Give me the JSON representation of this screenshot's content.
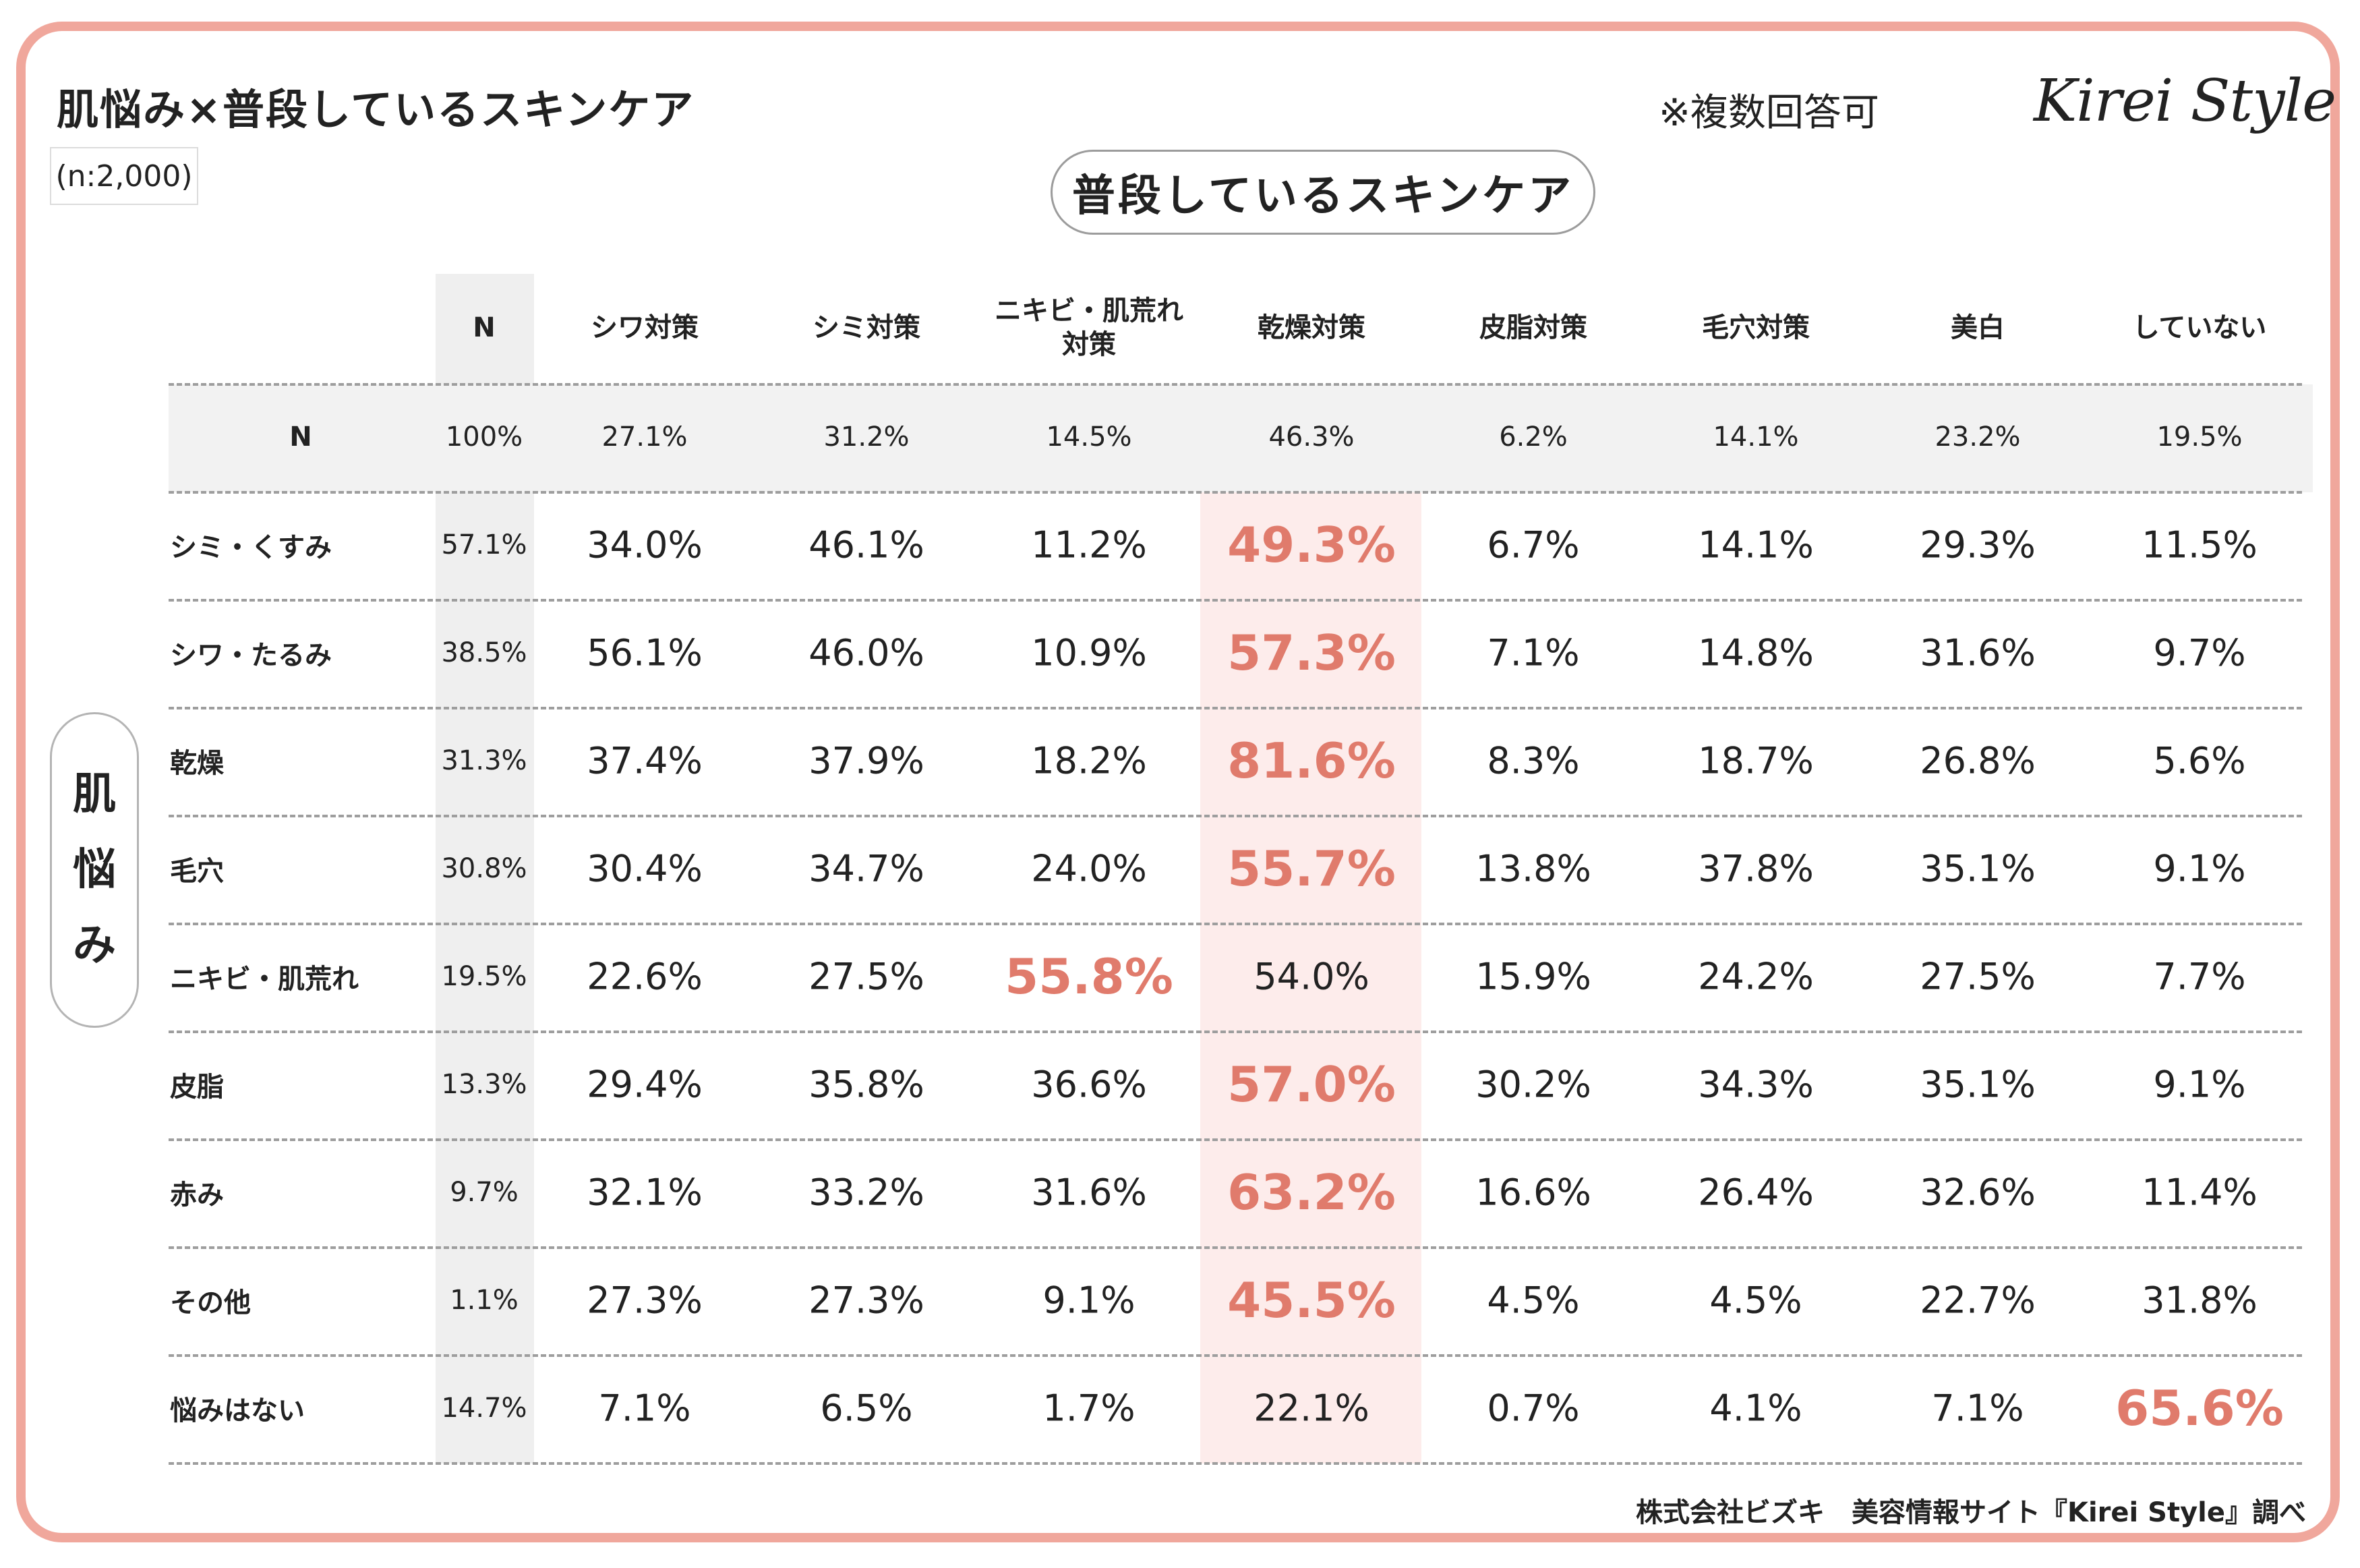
{
  "title": "肌悩み×普段しているスキンケア",
  "sample_size": "(n:2,000)",
  "note": "※複数回答可",
  "logo_text": "Kirei Style",
  "column_group_label": "普段しているスキンケア",
  "row_group_label": [
    "肌",
    "悩",
    "み"
  ],
  "footer": "株式会社ビズキ　美容情報サイト『Kirei Style』調べ",
  "colors": {
    "frame": "#f0a79c",
    "highlight_text": "#e07b6c",
    "highlight_bg": "#fdeceb",
    "n_column_bg": "#efefef"
  },
  "chart_data": {
    "type": "table",
    "columns": [
      "N",
      "シワ対策",
      "シミ対策",
      "ニキビ・肌荒れ\n対策",
      "乾燥対策",
      "皮脂対策",
      "毛穴対策",
      "美白",
      "していない"
    ],
    "total_row": {
      "label": "N",
      "values": [
        "100%",
        "27.1%",
        "31.2%",
        "14.5%",
        "46.3%",
        "6.2%",
        "14.1%",
        "23.2%",
        "19.5%"
      ]
    },
    "rows": [
      {
        "label": "シミ・くすみ",
        "values": [
          "57.1%",
          "34.0%",
          "46.1%",
          "11.2%",
          "49.3%",
          "6.7%",
          "14.1%",
          "29.3%",
          "11.5%"
        ],
        "highlight": 4
      },
      {
        "label": "シワ・たるみ",
        "values": [
          "38.5%",
          "56.1%",
          "46.0%",
          "10.9%",
          "57.3%",
          "7.1%",
          "14.8%",
          "31.6%",
          "9.7%"
        ],
        "highlight": 4
      },
      {
        "label": "乾燥",
        "values": [
          "31.3%",
          "37.4%",
          "37.9%",
          "18.2%",
          "81.6%",
          "8.3%",
          "18.7%",
          "26.8%",
          "5.6%"
        ],
        "highlight": 4
      },
      {
        "label": "毛穴",
        "values": [
          "30.8%",
          "30.4%",
          "34.7%",
          "24.0%",
          "55.7%",
          "13.8%",
          "37.8%",
          "35.1%",
          "9.1%"
        ],
        "highlight": 4
      },
      {
        "label": "ニキビ・肌荒れ",
        "values": [
          "19.5%",
          "22.6%",
          "27.5%",
          "55.8%",
          "54.0%",
          "15.9%",
          "24.2%",
          "27.5%",
          "7.7%"
        ],
        "highlight": 3
      },
      {
        "label": "皮脂",
        "values": [
          "13.3%",
          "29.4%",
          "35.8%",
          "36.6%",
          "57.0%",
          "30.2%",
          "34.3%",
          "35.1%",
          "9.1%"
        ],
        "highlight": 4
      },
      {
        "label": "赤み",
        "values": [
          "9.7%",
          "32.1%",
          "33.2%",
          "31.6%",
          "63.2%",
          "16.6%",
          "26.4%",
          "32.6%",
          "11.4%"
        ],
        "highlight": 4
      },
      {
        "label": "その他",
        "values": [
          "1.1%",
          "27.3%",
          "27.3%",
          "9.1%",
          "45.5%",
          "4.5%",
          "4.5%",
          "22.7%",
          "31.8%"
        ],
        "highlight": 4
      },
      {
        "label": "悩みはない",
        "values": [
          "14.7%",
          "7.1%",
          "6.5%",
          "1.7%",
          "22.1%",
          "0.7%",
          "4.1%",
          "7.1%",
          "65.6%"
        ],
        "highlight": 8
      }
    ]
  }
}
